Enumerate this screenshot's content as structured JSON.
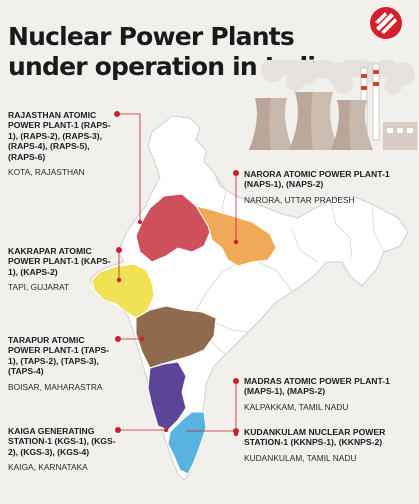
{
  "title": "Nuclear Power Plants under operation in India",
  "colors": {
    "background": "#f1f0ec",
    "accent": "#c8202f",
    "base_map": "#ffffff",
    "rajasthan": "#cf4f5c",
    "uttar_pradesh": "#f2a957",
    "gujarat": "#f1e155",
    "maharashtra": "#8f6a4c",
    "karnataka": "#5c4597",
    "tamil_nadu": "#58b3e0"
  },
  "icons": {
    "logo": "indian-express-logo-icon",
    "illustration": "cooling-tower-illustration"
  },
  "plants": [
    {
      "id": "raps",
      "name": "Rajasthan Atomic Power Plant-1 (RAPS-1), (RAPS-2), (RAPS-3), (RAPS-4), (RAPS-5), (RAPS-6)",
      "location": "Kota, Rajasthan"
    },
    {
      "id": "naps",
      "name": "Narora Atomic Power Plant-1 (NAPS-1), (NAPS-2)",
      "location": "Narora, Uttar Pradesh"
    },
    {
      "id": "kaps",
      "name": "Kakrapar Atomic Power Plant-1 (KAPS-1), (KAPS-2)",
      "location": "Tapi, Gujarat"
    },
    {
      "id": "taps",
      "name": "Tarapur Atomic Power Plant-1 (TAPS-1), (TAPS-2), (TAPS-3), (TAPS-4)",
      "location": "Boisar, Maharastra"
    },
    {
      "id": "maps",
      "name": "Madras Atomic Power Plant-1 (MAPS-1), (MAPS-2)",
      "location": "Kalpakkam, Tamil Nadu"
    },
    {
      "id": "kgs",
      "name": "Kaiga Generating Station-1 (KGS-1), (KGS-2), (KGS-3), (KGS-4)",
      "location": "Kaiga, Karnataka"
    },
    {
      "id": "kknps",
      "name": "Kudankulam Nuclear Power Station-1 (KKNPS-1), (KKNPS-2)",
      "location": "Kudankulam, Tamil Nadu"
    }
  ]
}
